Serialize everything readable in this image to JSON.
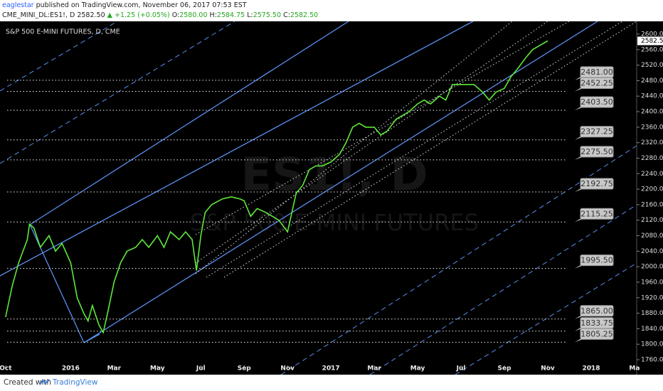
{
  "header": {
    "author": "eaglestar",
    "published": "published on TradingView.com, November 06, 2017 07:53 EST",
    "symbol": "CME_MINI_DL:ES1!, D",
    "price": "2582.50",
    "change": "▲ +1.25 (+0.05%)",
    "ohlc": [
      {
        "label": "O:",
        "value": "2580.00"
      },
      {
        "label": "H:",
        "value": "2584.75"
      },
      {
        "label": "L:",
        "value": "2575.50"
      },
      {
        "label": "C:",
        "value": "2582.50"
      }
    ]
  },
  "chart_data": {
    "type": "line",
    "title": "S&P 500 E-MINI FUTURES, D, CME",
    "watermark": [
      "ES1!, D",
      "S&P 500 E-MINI FUTURES"
    ],
    "color": "#5ee83a",
    "x": [
      0,
      0.3,
      0.6,
      1.0,
      1.1,
      1.3,
      1.6,
      2.0,
      2.3,
      2.6,
      3.0,
      3.3,
      3.6,
      3.8,
      4.0,
      4.3,
      4.5,
      4.7,
      5.0,
      5.3,
      5.6,
      6.0,
      6.3,
      6.6,
      7.0,
      7.3,
      7.6,
      8.0,
      8.3,
      8.6,
      8.8,
      9.0,
      9.2,
      9.5,
      10.0,
      10.4,
      10.8,
      11.0,
      11.3,
      11.6,
      12.0,
      12.3,
      12.6,
      13.0,
      13.2,
      13.4,
      13.7,
      14.0,
      14.3,
      14.6,
      15.0,
      15.4,
      15.7,
      16.0,
      16.3,
      16.6,
      17.0,
      17.3,
      17.6,
      18.0,
      18.3,
      18.6,
      19.0,
      19.3,
      19.6,
      20.0,
      20.3,
      20.6,
      21.0,
      21.3,
      21.6,
      22.0,
      22.3,
      22.6,
      23.0,
      23.3,
      23.6,
      24.0,
      24.3,
      24.6,
      25.0
    ],
    "values": [
      1870,
      1950,
      2010,
      2070,
      2110,
      2100,
      2050,
      2080,
      2040,
      2060,
      2010,
      1920,
      1880,
      1860,
      1900,
      1850,
      1830,
      1880,
      1960,
      2010,
      2040,
      2050,
      2070,
      2050,
      2080,
      2050,
      2090,
      2070,
      2090,
      2070,
      1990,
      2080,
      2140,
      2160,
      2175,
      2180,
      2175,
      2170,
      2130,
      2150,
      2140,
      2130,
      2120,
      2090,
      2140,
      2190,
      2210,
      2250,
      2260,
      2260,
      2270,
      2290,
      2320,
      2360,
      2370,
      2360,
      2360,
      2340,
      2350,
      2380,
      2390,
      2400,
      2420,
      2430,
      2420,
      2440,
      2430,
      2470,
      2470,
      2470,
      2470,
      2450,
      2430,
      2450,
      2460,
      2490,
      2510,
      2540,
      2560,
      2570,
      2582.5
    ],
    "xlim": [
      -0.26,
      29.1
    ],
    "xticks": [
      {
        "value": 0,
        "label": "Oct"
      },
      {
        "value": 3,
        "label": "2016"
      },
      {
        "value": 5,
        "label": "Mar"
      },
      {
        "value": 7,
        "label": "May"
      },
      {
        "value": 9,
        "label": "Jul"
      },
      {
        "value": 11,
        "label": "Sep"
      },
      {
        "value": 13,
        "label": "Nov"
      },
      {
        "value": 15,
        "label": "2017"
      },
      {
        "value": 17,
        "label": "Mar"
      },
      {
        "value": 19,
        "label": "May"
      },
      {
        "value": 21,
        "label": "Jul"
      },
      {
        "value": 23,
        "label": "Sep"
      },
      {
        "value": 25,
        "label": "Nov"
      },
      {
        "value": 27,
        "label": "2018"
      },
      {
        "value": 29,
        "label": "Ma"
      }
    ],
    "ylim": [
      1749,
      2633
    ],
    "yticks": [
      {
        "value": 1760,
        "label": "1760.00"
      },
      {
        "value": 1800,
        "label": "1800.00"
      },
      {
        "value": 1840,
        "label": "1840.00"
      },
      {
        "value": 1880,
        "label": "1880.00"
      },
      {
        "value": 1920,
        "label": "1920.00"
      },
      {
        "value": 1960,
        "label": "1960.00"
      },
      {
        "value": 2000,
        "label": "2000.00"
      },
      {
        "value": 2040,
        "label": "2040.00"
      },
      {
        "value": 2080,
        "label": "2080.00"
      },
      {
        "value": 2120,
        "label": "2120.00"
      },
      {
        "value": 2160,
        "label": "2160.00"
      },
      {
        "value": 2200,
        "label": "2200.00"
      },
      {
        "value": 2240,
        "label": "2240.00"
      },
      {
        "value": 2280,
        "label": "2280.00"
      },
      {
        "value": 2320,
        "label": "2320.00"
      },
      {
        "value": 2360,
        "label": "2360.00"
      },
      {
        "value": 2400,
        "label": "2400.00"
      },
      {
        "value": 2440,
        "label": "2440.00"
      },
      {
        "value": 2480,
        "label": "2480.00"
      },
      {
        "value": 2520,
        "label": "2520.00"
      },
      {
        "value": 2560,
        "label": "2560.00"
      },
      {
        "value": 2600,
        "label": "2600.00"
      }
    ],
    "last_price": {
      "value": 2582.5,
      "label": "2582.50"
    },
    "levels": [
      {
        "value": 2481,
        "label": "2481.00"
      },
      {
        "value": 2452.25,
        "label": "2452.25"
      },
      {
        "value": 2403.5,
        "label": "2403.50"
      },
      {
        "value": 2327.25,
        "label": "2327.25"
      },
      {
        "value": 2275.5,
        "label": "2275.50"
      },
      {
        "value": 2192.75,
        "label": "2192.75"
      },
      {
        "value": 2115.25,
        "label": "2115.25"
      },
      {
        "value": 1995.5,
        "label": "1995.50"
      },
      {
        "value": 1865,
        "label": "1865.00"
      },
      {
        "value": 1833.75,
        "label": "1833.75"
      },
      {
        "value": 1805.25,
        "label": "1805.25"
      }
    ]
  },
  "footer": {
    "created": "Created with",
    "brand": "TradingView"
  }
}
